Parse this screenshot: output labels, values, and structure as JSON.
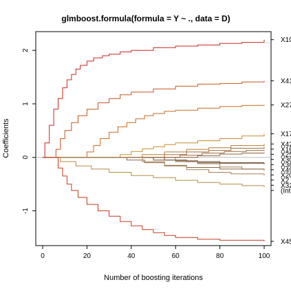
{
  "chart_data": {
    "type": "line",
    "title": "glmboost.formula(formula = Y ~ ., data = D)",
    "xlabel": "Number of boosting iterations",
    "ylabel": "Coefficients",
    "xlim": [
      0,
      100
    ],
    "ylim": [
      -1.65,
      2.35
    ],
    "xticks": [
      0,
      20,
      40,
      60,
      80,
      100
    ],
    "yticks": [
      -1,
      0,
      1,
      2
    ],
    "zero_line": true,
    "grid": false,
    "legend": "right-margin labels at line ends",
    "series": [
      {
        "name": "X10",
        "color": "#c8261e",
        "values": [
          [
            1,
            0.27
          ],
          [
            3,
            0.6
          ],
          [
            5,
            0.9
          ],
          [
            7,
            1.1
          ],
          [
            9,
            1.3
          ],
          [
            11,
            1.45
          ],
          [
            13,
            1.55
          ],
          [
            15,
            1.65
          ],
          [
            17,
            1.72
          ],
          [
            20,
            1.8
          ],
          [
            23,
            1.86
          ],
          [
            27,
            1.9
          ],
          [
            30,
            1.93
          ],
          [
            35,
            1.97
          ],
          [
            40,
            2.0
          ],
          [
            50,
            2.05
          ],
          [
            60,
            2.08
          ],
          [
            70,
            2.1
          ],
          [
            80,
            2.13
          ],
          [
            90,
            2.15
          ],
          [
            100,
            2.2
          ]
        ]
      },
      {
        "name": "X41",
        "color": "#c4541c",
        "values": [
          [
            4,
            0
          ],
          [
            6,
            0.15
          ],
          [
            8,
            0.35
          ],
          [
            10,
            0.5
          ],
          [
            13,
            0.65
          ],
          [
            16,
            0.78
          ],
          [
            20,
            0.9
          ],
          [
            25,
            1.02
          ],
          [
            30,
            1.1
          ],
          [
            35,
            1.17
          ],
          [
            40,
            1.22
          ],
          [
            50,
            1.28
          ],
          [
            60,
            1.33
          ],
          [
            70,
            1.37
          ],
          [
            80,
            1.38
          ],
          [
            90,
            1.41
          ],
          [
            100,
            1.43
          ]
        ]
      },
      {
        "name": "X27",
        "color": "#c96a1f",
        "values": [
          [
            18,
            0
          ],
          [
            20,
            0.1
          ],
          [
            23,
            0.22
          ],
          [
            26,
            0.35
          ],
          [
            30,
            0.47
          ],
          [
            34,
            0.57
          ],
          [
            38,
            0.65
          ],
          [
            42,
            0.72
          ],
          [
            46,
            0.78
          ],
          [
            50,
            0.82
          ],
          [
            55,
            0.86
          ],
          [
            60,
            0.88
          ],
          [
            70,
            0.92
          ],
          [
            80,
            0.95
          ],
          [
            90,
            0.97
          ],
          [
            100,
            0.98
          ]
        ]
      },
      {
        "name": "X17",
        "color": "#c98a2c",
        "values": [
          [
            30,
            0
          ],
          [
            35,
            0.05
          ],
          [
            40,
            0.11
          ],
          [
            45,
            0.16
          ],
          [
            50,
            0.2
          ],
          [
            55,
            0.24
          ],
          [
            60,
            0.27
          ],
          [
            70,
            0.31
          ],
          [
            80,
            0.35
          ],
          [
            90,
            0.4
          ],
          [
            100,
            0.44
          ]
        ]
      },
      {
        "name": "X42",
        "color": "#b07a30",
        "values": [
          [
            36,
            0
          ],
          [
            45,
            0.05
          ],
          [
            55,
            0.1
          ],
          [
            65,
            0.15
          ],
          [
            75,
            0.18
          ],
          [
            85,
            0.22
          ],
          [
            100,
            0.25
          ]
        ]
      },
      {
        "name": "X16",
        "color": "#a0703a",
        "values": [
          [
            45,
            0
          ],
          [
            55,
            0.05
          ],
          [
            65,
            0.1
          ],
          [
            75,
            0.13
          ],
          [
            85,
            0.17
          ],
          [
            100,
            0.2
          ]
        ]
      },
      {
        "name": "X25",
        "color": "#9a6a40",
        "values": [
          [
            52,
            0
          ],
          [
            62,
            0.04
          ],
          [
            72,
            0.08
          ],
          [
            82,
            0.11
          ],
          [
            92,
            0.13
          ],
          [
            100,
            0.14
          ]
        ]
      },
      {
        "name": "X30",
        "color": "#8e6038",
        "values": [
          [
            60,
            0
          ],
          [
            70,
            0.03
          ],
          [
            80,
            0.06
          ],
          [
            90,
            0.08
          ],
          [
            100,
            0.09
          ]
        ]
      },
      {
        "name": "X36",
        "color": "#7a5636",
        "values": [
          [
            40,
            0
          ],
          [
            50,
            -0.05
          ],
          [
            60,
            -0.08
          ],
          [
            70,
            -0.1
          ],
          [
            80,
            -0.1
          ],
          [
            100,
            -0.1
          ]
        ]
      },
      {
        "name": "X49",
        "color": "#6a4a32",
        "values": [
          [
            45,
            0
          ],
          [
            55,
            -0.05
          ],
          [
            65,
            -0.08
          ],
          [
            80,
            -0.11
          ],
          [
            100,
            -0.13
          ]
        ]
      },
      {
        "name": "X20",
        "color": "#8a6440",
        "values": [
          [
            30,
            0
          ],
          [
            38,
            -0.05
          ],
          [
            46,
            -0.1
          ],
          [
            55,
            -0.15
          ],
          [
            65,
            -0.19
          ],
          [
            80,
            -0.22
          ],
          [
            100,
            -0.24
          ]
        ]
      },
      {
        "name": "X2",
        "color": "#9a7448",
        "values": [
          [
            50,
            0
          ],
          [
            60,
            -0.06
          ],
          [
            70,
            -0.12
          ],
          [
            80,
            -0.18
          ],
          [
            90,
            -0.22
          ],
          [
            100,
            -0.25
          ]
        ]
      },
      {
        "name": "X32",
        "color": "#aa8050",
        "values": [
          [
            35,
            0
          ],
          [
            45,
            -0.08
          ],
          [
            55,
            -0.16
          ],
          [
            65,
            -0.23
          ],
          [
            75,
            -0.28
          ],
          [
            85,
            -0.31
          ],
          [
            100,
            -0.34
          ]
        ]
      },
      {
        "name": "(Intercept)",
        "color": "#b88a40",
        "values": [
          [
            3,
            0
          ],
          [
            8,
            -0.08
          ],
          [
            15,
            -0.16
          ],
          [
            22,
            -0.22
          ],
          [
            30,
            -0.28
          ],
          [
            40,
            -0.34
          ],
          [
            50,
            -0.38
          ],
          [
            60,
            -0.43
          ],
          [
            70,
            -0.47
          ],
          [
            80,
            -0.5
          ],
          [
            90,
            -0.53
          ],
          [
            100,
            -0.56
          ]
        ]
      },
      {
        "name": "X45",
        "color": "#c23a1a",
        "values": [
          [
            5,
            0
          ],
          [
            7,
            -0.2
          ],
          [
            9,
            -0.35
          ],
          [
            11,
            -0.5
          ],
          [
            13,
            -0.62
          ],
          [
            16,
            -0.75
          ],
          [
            20,
            -0.88
          ],
          [
            25,
            -1.0
          ],
          [
            30,
            -1.1
          ],
          [
            35,
            -1.2
          ],
          [
            40,
            -1.28
          ],
          [
            45,
            -1.35
          ],
          [
            50,
            -1.41
          ],
          [
            55,
            -1.46
          ],
          [
            60,
            -1.5
          ],
          [
            70,
            -1.53
          ],
          [
            80,
            -1.55
          ],
          [
            100,
            -1.57
          ]
        ]
      }
    ]
  }
}
